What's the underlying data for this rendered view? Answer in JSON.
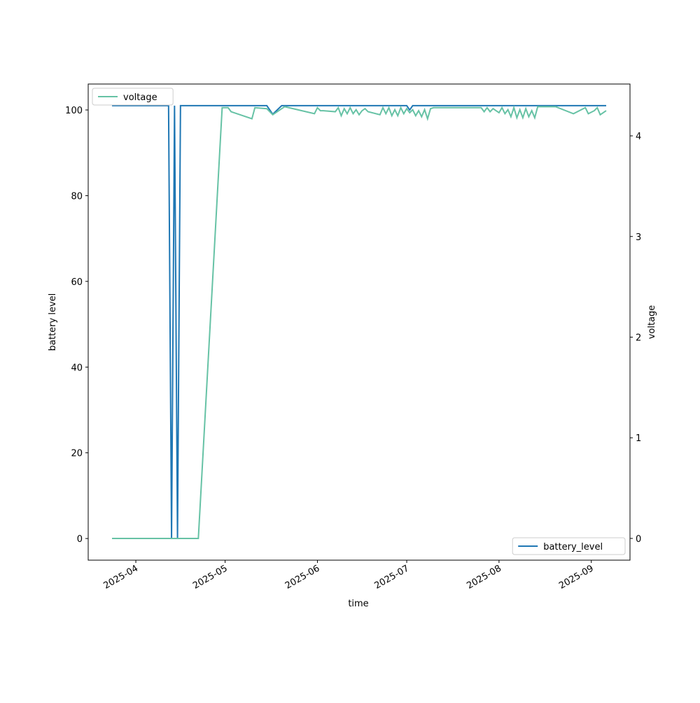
{
  "chart_data": {
    "type": "line",
    "x_label": "time",
    "y_label": "battery level",
    "y2_label": "voltage",
    "xlim": [
      "2025-03-16",
      "2025-09-14"
    ],
    "xticks": [
      "2025-04",
      "2025-05",
      "2025-06",
      "2025-07",
      "2025-08",
      "2025-09"
    ],
    "ylim": [
      -5.05,
      106.05
    ],
    "yticks": [
      0,
      20,
      40,
      60,
      80,
      100
    ],
    "y2lim": [
      -0.216,
      4.515
    ],
    "y2ticks": [
      0,
      1,
      2,
      3,
      4
    ],
    "series": [
      {
        "name": "battery_level",
        "color": "#1f77b4",
        "legend_loc": "lower right",
        "x": [
          "2025-03-24",
          "2025-04-12",
          "2025-04-13",
          "2025-04-14",
          "2025-04-15",
          "2025-04-16",
          "2025-05-15",
          "2025-05-17",
          "2025-05-20",
          "2025-07-01",
          "2025-07-02",
          "2025-07-03",
          "2025-09-06"
        ],
        "values": [
          101,
          101,
          0,
          101,
          0,
          101,
          101,
          99,
          101,
          101,
          100,
          101,
          101
        ]
      },
      {
        "name": "voltage",
        "color": "#66c2a5",
        "axis": "y2",
        "legend_loc": "upper left",
        "x": [
          "2025-03-24",
          "2025-04-22",
          "2025-04-30",
          "2025-05-02",
          "2025-05-03",
          "2025-05-10",
          "2025-05-11",
          "2025-05-15",
          "2025-05-17",
          "2025-05-19",
          "2025-05-21",
          "2025-05-31",
          "2025-06-01",
          "2025-06-02",
          "2025-06-03",
          "2025-06-07",
          "2025-06-08",
          "2025-06-09",
          "2025-06-10",
          "2025-06-11",
          "2025-06-12",
          "2025-06-13",
          "2025-06-14",
          "2025-06-15",
          "2025-06-16",
          "2025-06-17",
          "2025-06-18",
          "2025-06-22",
          "2025-06-23",
          "2025-06-24",
          "2025-06-25",
          "2025-06-26",
          "2025-06-27",
          "2025-06-28",
          "2025-06-29",
          "2025-06-30",
          "2025-07-01",
          "2025-07-02",
          "2025-07-03",
          "2025-07-04",
          "2025-07-05",
          "2025-07-06",
          "2025-07-07",
          "2025-07-08",
          "2025-07-09",
          "2025-07-10",
          "2025-07-26",
          "2025-07-27",
          "2025-07-28",
          "2025-07-29",
          "2025-07-30",
          "2025-08-01",
          "2025-08-02",
          "2025-08-03",
          "2025-08-04",
          "2025-08-05",
          "2025-08-06",
          "2025-08-07",
          "2025-08-08",
          "2025-08-09",
          "2025-08-10",
          "2025-08-11",
          "2025-08-12",
          "2025-08-13",
          "2025-08-14",
          "2025-08-20",
          "2025-08-26",
          "2025-08-30",
          "2025-08-31",
          "2025-09-02",
          "2025-09-03",
          "2025-09-04",
          "2025-09-06"
        ],
        "values": [
          0,
          0,
          4.28,
          4.28,
          4.24,
          4.17,
          4.28,
          4.27,
          4.21,
          4.25,
          4.29,
          4.22,
          4.28,
          4.25,
          4.25,
          4.24,
          4.28,
          4.2,
          4.27,
          4.22,
          4.28,
          4.22,
          4.26,
          4.21,
          4.25,
          4.27,
          4.24,
          4.21,
          4.28,
          4.22,
          4.28,
          4.2,
          4.26,
          4.2,
          4.28,
          4.22,
          4.27,
          4.23,
          4.26,
          4.2,
          4.25,
          4.19,
          4.26,
          4.17,
          4.27,
          4.28,
          4.28,
          4.24,
          4.28,
          4.24,
          4.27,
          4.23,
          4.28,
          4.22,
          4.26,
          4.19,
          4.28,
          4.18,
          4.26,
          4.18,
          4.27,
          4.19,
          4.25,
          4.18,
          4.29,
          4.29,
          4.22,
          4.28,
          4.22,
          4.25,
          4.28,
          4.21,
          4.25
        ]
      }
    ]
  }
}
